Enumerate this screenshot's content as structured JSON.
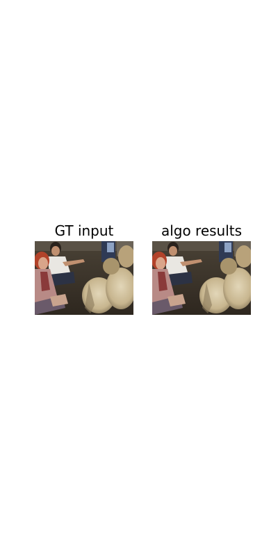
{
  "panels": [
    {
      "title": "GT input",
      "image_description_id": "photo-people-with-sheep"
    },
    {
      "title": "algo results",
      "image_description_id": "photo-people-with-sheep"
    }
  ],
  "colors": {
    "background": "#ffffff",
    "title_text": "#000000",
    "floor": "#3d3429",
    "wool": "#d6c8a8",
    "wool_shadow": "#9c8c6c",
    "hair_red": "#b2432a",
    "jacket_pink": "#b88a86",
    "shirt_white": "#e9e7e2",
    "jeans": "#2c3244"
  }
}
